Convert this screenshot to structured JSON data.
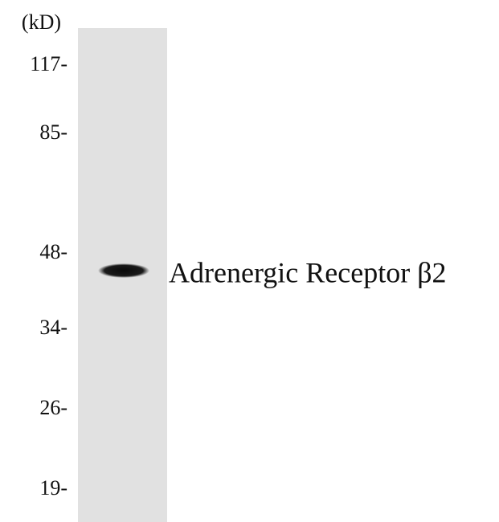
{
  "header": {
    "unit": "(kD)"
  },
  "markers": [
    "117-",
    "85-",
    "48-",
    "34-",
    "26-",
    "19-"
  ],
  "band": {
    "label": "Adrenergic Receptor β2"
  }
}
